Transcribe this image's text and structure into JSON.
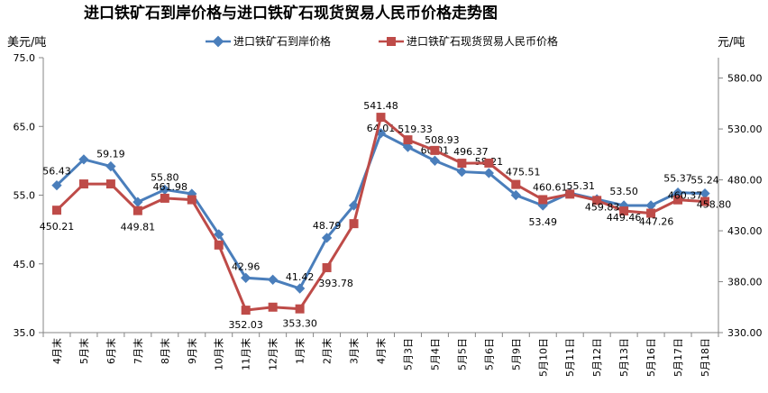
{
  "chart_data": {
    "type": "line",
    "title": "进口铁矿石到岸价格与进口铁矿石现货贸易人民币价格走势图",
    "ylabel_left": "美元/吨",
    "ylabel_right": "元/吨",
    "ylim_left": [
      35,
      75
    ],
    "yticks_left": [
      "35.0",
      "45.0",
      "55.0",
      "65.0",
      "75.0"
    ],
    "ylim_right": [
      330,
      600
    ],
    "yticks_right": [
      "330.00",
      "380.00",
      "430.00",
      "480.00",
      "530.00",
      "580.00"
    ],
    "legend_position": "top",
    "categories": [
      "4月末",
      "5月末",
      "6月末",
      "7月末",
      "8月末",
      "9月末",
      "10月末",
      "11月末",
      "12月末",
      "1月末",
      "2月末",
      "3月末",
      "4月末",
      "5月3日",
      "5月4日",
      "5月5日",
      "5月6日",
      "5月9日",
      "5月10日",
      "5月11日",
      "5月12日",
      "5月13日",
      "5月16日",
      "5月17日",
      "5月18日"
    ],
    "series": [
      {
        "name": "进口铁矿石到岸价格",
        "axis": "left",
        "color": "#4a7ebb",
        "marker": "diamond",
        "values": [
          56.43,
          60.2,
          59.19,
          54.0,
          55.8,
          55.2,
          49.3,
          42.96,
          42.7,
          41.42,
          48.79,
          53.5,
          64.01,
          62.0,
          60.01,
          58.4,
          58.21,
          55.0,
          53.49,
          55.31,
          54.4,
          53.5,
          53.5,
          55.37,
          55.24
        ],
        "labels": {
          "0": "56.43",
          "2": "59.19",
          "4": "55.80",
          "7": "42.96",
          "9": "41.42",
          "10": "48.79",
          "12": "64.01",
          "14": "60.01",
          "16": "58.21",
          "18": "53.49",
          "19": "55.31",
          "21": "53.50",
          "23": "55.37",
          "24": "55.24"
        }
      },
      {
        "name": "进口铁矿石现货贸易人民币价格",
        "axis": "right",
        "color": "#be4b48",
        "marker": "square",
        "values": [
          450.21,
          476.0,
          476.0,
          449.81,
          461.98,
          460.5,
          416.0,
          352.03,
          355.0,
          353.3,
          393.78,
          437.0,
          541.48,
          519.33,
          508.93,
          496.37,
          496.5,
          475.51,
          460.61,
          466.0,
          459.83,
          449.46,
          447.26,
          460.37,
          458.8
        ],
        "labels": {
          "0": "450.21",
          "3": "449.81",
          "4": "461.98",
          "7": "352.03",
          "9": "353.30",
          "10": "393.78",
          "12": "541.48",
          "13": "519.33",
          "14": "508.93",
          "15": "496.37",
          "17": "475.51",
          "18": "460.61",
          "20": "459.83",
          "21": "449.46",
          "22": "447.26",
          "23": "460.37",
          "24": "458.80"
        }
      }
    ]
  }
}
